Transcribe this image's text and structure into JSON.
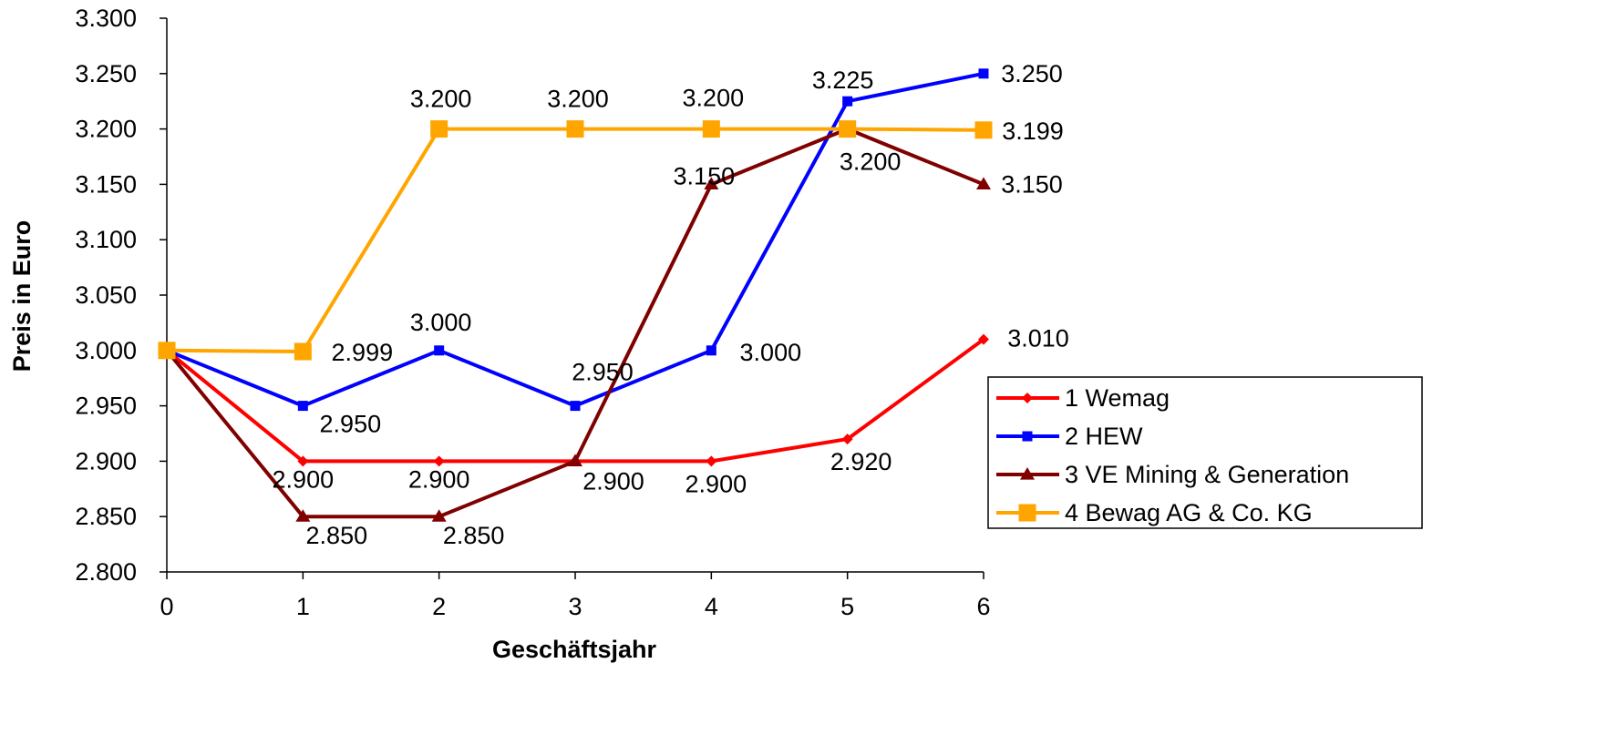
{
  "chart_data": {
    "type": "line",
    "title": "",
    "xlabel": "Geschäftsjahr",
    "ylabel": "Preis in Euro",
    "x": [
      0,
      1,
      2,
      3,
      4,
      5,
      6
    ],
    "xlim": [
      0,
      6
    ],
    "ylim": [
      2.8,
      3.3
    ],
    "y_ticks": [
      "2.800",
      "2.850",
      "2.900",
      "2.950",
      "3.000",
      "3.050",
      "3.100",
      "3.150",
      "3.200",
      "3.250",
      "3.300"
    ],
    "x_ticks": [
      "0",
      "1",
      "2",
      "3",
      "4",
      "5",
      "6"
    ],
    "grid": false,
    "legend_position": "right",
    "series": [
      {
        "name": "1 Wemag",
        "color": "#ff0000",
        "marker": "diamond",
        "values": [
          3.0,
          2.9,
          2.9,
          2.9,
          2.9,
          2.92,
          3.01
        ],
        "labels": [
          "",
          "2.900",
          "2.900",
          "",
          "2.900",
          "2.920",
          "3.010"
        ]
      },
      {
        "name": "2 HEW",
        "color": "#0000ff",
        "marker": "square-small",
        "values": [
          3.0,
          2.95,
          3.0,
          2.95,
          3.0,
          3.225,
          3.25
        ],
        "labels": [
          "",
          "2.950",
          "3.000",
          "2.950",
          "3.000",
          "3.225",
          "3.250"
        ]
      },
      {
        "name": "3 VE Mining & Generation",
        "color": "#800000",
        "marker": "triangle",
        "values": [
          3.0,
          2.85,
          2.85,
          2.9,
          3.15,
          3.2,
          3.15
        ],
        "labels": [
          "",
          "2.850",
          "2.850",
          "2.900",
          "3.150",
          "3.200",
          "3.150"
        ]
      },
      {
        "name": "4 Bewag AG & Co. KG",
        "color": "#ffa500",
        "marker": "square-large",
        "values": [
          3.0,
          2.999,
          3.2,
          3.2,
          3.2,
          3.2,
          3.199
        ],
        "labels": [
          "",
          "2.999",
          "3.200",
          "3.200",
          "3.200",
          "",
          "3.199"
        ]
      }
    ]
  }
}
